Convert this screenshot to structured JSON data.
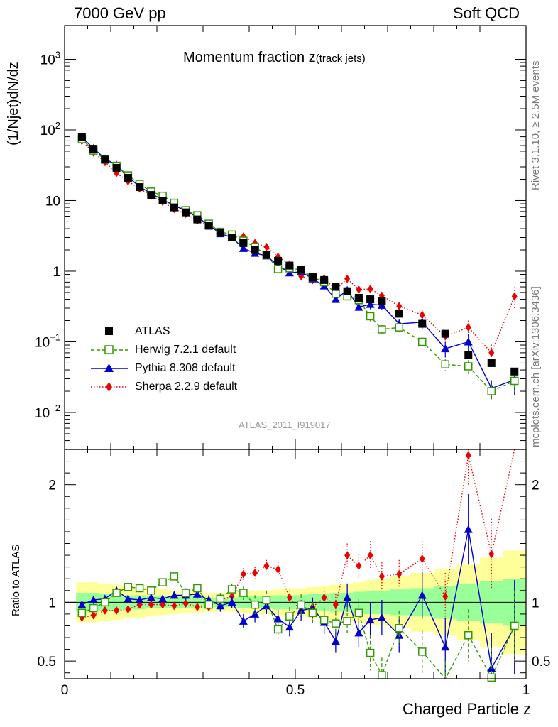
{
  "header": {
    "left": "7000 GeV pp",
    "right": "Soft QCD"
  },
  "side_labels": {
    "rivet": "Rivet 3.1.10, ≥ 2.5M events",
    "mcplots": "mcplots.cern.ch [arXiv:1306.3436]"
  },
  "analysis_id": "ATLAS_2011_I919017",
  "chart_data": {
    "type": "scatter",
    "title": "Momentum fraction z",
    "title_sub": "(track jets)",
    "xlabel": "Charged Particle z",
    "ylabel": "(1/Njet)dN/dz",
    "ratio_ylabel": "Ratio to ATLAS",
    "xlim": [
      0,
      1
    ],
    "ylim": [
      0.003,
      3000
    ],
    "yscale": "log",
    "ratio_ylim": [
      0.35,
      2.3
    ],
    "x_ticks": [
      0,
      0.5,
      1
    ],
    "x_tick_labels": [
      "0",
      "0.5",
      "1"
    ],
    "y_tick_labels": [
      "10^-2",
      "10^-1",
      "1",
      "10",
      "10^2",
      "10^3"
    ],
    "ratio_tick_labels": [
      "0.5",
      "1",
      "2"
    ],
    "legend_position": "bottom-left",
    "x": [
      0.0375,
      0.0625,
      0.0875,
      0.1125,
      0.1375,
      0.1625,
      0.1875,
      0.2125,
      0.2375,
      0.2625,
      0.2875,
      0.3125,
      0.3375,
      0.3625,
      0.3875,
      0.4125,
      0.4375,
      0.4625,
      0.4875,
      0.5125,
      0.5375,
      0.5625,
      0.5875,
      0.6125,
      0.6375,
      0.6625,
      0.6875,
      0.725,
      0.775,
      0.825,
      0.875,
      0.925,
      0.975
    ],
    "series": [
      {
        "name": "ATLAS",
        "color": "#000000",
        "marker": "square",
        "values": [
          80,
          54,
          38,
          29,
          21,
          15.5,
          12,
          10,
          8,
          6.8,
          5.4,
          4.4,
          3.5,
          3.0,
          2.5,
          2.0,
          1.7,
          1.4,
          1.2,
          1.05,
          0.82,
          0.75,
          0.6,
          0.52,
          0.42,
          0.4,
          0.38,
          0.25,
          0.18,
          0.13,
          0.065,
          0.05,
          0.038
        ],
        "ratio": [
          1,
          1,
          1,
          1,
          1,
          1,
          1,
          1,
          1,
          1,
          1,
          1,
          1,
          1,
          1,
          1,
          1,
          1,
          1,
          1,
          1,
          1,
          1,
          1,
          1,
          1,
          1,
          1,
          1,
          1,
          1,
          1,
          1
        ],
        "band_syst": [
          0.17,
          0.17,
          0.16,
          0.15,
          0.14,
          0.13,
          0.12,
          0.11,
          0.1,
          0.09,
          0.09,
          0.08,
          0.08,
          0.08,
          0.09,
          0.1,
          0.1,
          0.11,
          0.12,
          0.12,
          0.13,
          0.14,
          0.15,
          0.16,
          0.17,
          0.19,
          0.2,
          0.22,
          0.25,
          0.28,
          0.32,
          0.38,
          0.44
        ],
        "band_stat": [
          0.08,
          0.08,
          0.07,
          0.07,
          0.06,
          0.06,
          0.05,
          0.05,
          0.05,
          0.05,
          0.05,
          0.04,
          0.04,
          0.04,
          0.05,
          0.05,
          0.05,
          0.06,
          0.06,
          0.06,
          0.07,
          0.07,
          0.08,
          0.08,
          0.09,
          0.1,
          0.1,
          0.11,
          0.12,
          0.14,
          0.16,
          0.18,
          0.2
        ]
      },
      {
        "name": "Herwig 7.2.1 default",
        "color": "#339900",
        "marker": "open-square",
        "values": [
          74,
          51,
          38,
          31,
          22.7,
          17.2,
          13.4,
          11.7,
          9.3,
          7.3,
          6.2,
          4.7,
          3.6,
          3.3,
          2.7,
          2.2,
          1.7,
          1.07,
          1.1,
          1.05,
          0.82,
          0.7,
          0.48,
          0.44,
          0.39,
          0.23,
          0.15,
          0.16,
          0.1,
          0.048,
          0.045,
          0.02,
          0.028
        ],
        "ratio": [
          0.91,
          0.95,
          1.0,
          1.08,
          1.13,
          1.12,
          1.1,
          1.17,
          1.22,
          1.08,
          1.12,
          0.98,
          1.03,
          1.11,
          1.08,
          0.98,
          1.02,
          0.77,
          0.88,
          0.98,
          0.91,
          0.85,
          0.82,
          0.84,
          0.91,
          0.57,
          0.38,
          0.78,
          0.58,
          0.3,
          0.72,
          0.36,
          0.8
        ],
        "err": [
          0.04,
          0.04,
          0.03,
          0.03,
          0.03,
          0.03,
          0.03,
          0.03,
          0.03,
          0.04,
          0.04,
          0.04,
          0.05,
          0.05,
          0.06,
          0.08,
          0.08,
          0.08,
          0.08,
          0.09,
          0.09,
          0.1,
          0.1,
          0.12,
          0.12,
          0.15,
          0.15,
          0.15,
          0.18,
          0.2,
          0.22,
          0.25,
          0.3
        ]
      },
      {
        "name": "Pythia 8.308 default",
        "color": "#0000cc",
        "marker": "triangle",
        "values": [
          78,
          55,
          39,
          32,
          21.5,
          15.8,
          12.5,
          10.3,
          8.5,
          7.2,
          5.8,
          4.5,
          3.4,
          3.0,
          2.1,
          1.8,
          1.65,
          1.2,
          0.95,
          0.98,
          0.78,
          0.62,
          0.4,
          0.54,
          0.31,
          0.34,
          0.33,
          0.18,
          0.19,
          0.08,
          0.1,
          0.022,
          0.029
        ],
        "ratio": [
          0.98,
          1.02,
          1.03,
          1.1,
          1.03,
          1.02,
          1.04,
          1.03,
          1.06,
          1.06,
          1.07,
          1.02,
          0.97,
          1.0,
          0.84,
          0.9,
          0.97,
          0.86,
          0.79,
          0.93,
          0.95,
          0.83,
          0.67,
          1.04,
          0.74,
          0.85,
          0.87,
          0.72,
          1.06,
          0.62,
          1.62,
          0.44,
          0.79
        ],
        "err": [
          0.03,
          0.03,
          0.03,
          0.03,
          0.03,
          0.03,
          0.03,
          0.03,
          0.03,
          0.04,
          0.04,
          0.04,
          0.05,
          0.05,
          0.06,
          0.07,
          0.07,
          0.08,
          0.08,
          0.09,
          0.09,
          0.1,
          0.1,
          0.12,
          0.12,
          0.15,
          0.15,
          0.15,
          0.2,
          0.25,
          0.3,
          0.3,
          0.4
        ]
      },
      {
        "name": "Sherpa 2.2.9 default",
        "color": "#ee0000",
        "marker": "diamond",
        "values": [
          70,
          48,
          35,
          24.5,
          18.7,
          14.8,
          11.7,
          9.6,
          7.6,
          6.5,
          5.2,
          4.5,
          3.6,
          3.2,
          3.1,
          2.5,
          2.2,
          1.6,
          1.25,
          0.85,
          0.75,
          0.79,
          0.55,
          0.78,
          0.55,
          0.56,
          0.45,
          0.32,
          0.24,
          0.12,
          0.16,
          0.07,
          0.44
        ],
        "ratio": [
          0.87,
          0.89,
          0.93,
          0.93,
          0.94,
          0.98,
          0.98,
          0.98,
          0.97,
          0.99,
          0.96,
          0.96,
          1.02,
          1.05,
          1.24,
          1.25,
          1.31,
          1.28,
          1.04,
          0.93,
          0.96,
          1.04,
          0.98,
          1.4,
          1.31,
          1.4,
          1.22,
          1.24,
          1.37,
          1.05,
          2.25,
          1.41,
          3.2
        ],
        "err": [
          0.03,
          0.03,
          0.03,
          0.03,
          0.03,
          0.03,
          0.03,
          0.03,
          0.03,
          0.03,
          0.03,
          0.03,
          0.04,
          0.04,
          0.05,
          0.05,
          0.05,
          0.06,
          0.06,
          0.07,
          0.07,
          0.08,
          0.09,
          0.1,
          0.1,
          0.12,
          0.12,
          0.12,
          0.15,
          0.2,
          0.25,
          0.3,
          0.35
        ]
      }
    ]
  }
}
